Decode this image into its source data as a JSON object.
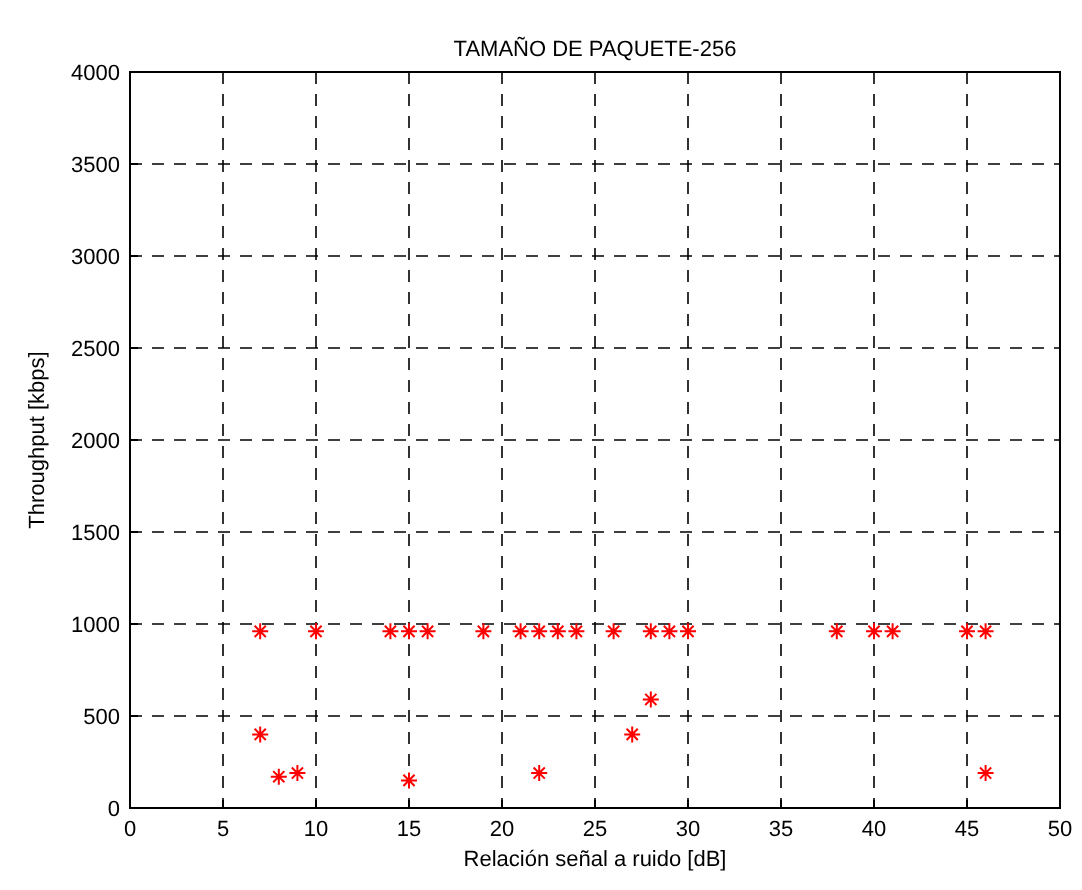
{
  "chart_data": {
    "type": "scatter",
    "title": "TAMAÑO DE PAQUETE-256",
    "xlabel": "Relación señal a ruido [dB]",
    "ylabel": "Throughput [kbps]",
    "x": [
      7,
      10,
      14,
      15,
      16,
      19,
      21,
      22,
      23,
      24,
      26,
      28,
      29,
      30,
      38,
      40,
      41,
      45,
      46,
      7,
      8,
      9,
      15,
      22,
      27,
      28,
      46
    ],
    "series": [
      {
        "color": "#ff0000",
        "values": [
          960,
          960,
          960,
          960,
          960,
          960,
          960,
          960,
          960,
          960,
          960,
          960,
          960,
          960,
          960,
          960,
          960,
          960,
          960,
          400,
          170,
          190,
          150,
          190,
          400,
          590,
          190
        ]
      }
    ],
    "xlim": [
      0,
      50
    ],
    "xticks": [
      0,
      5,
      10,
      15,
      20,
      25,
      30,
      35,
      40,
      45,
      50
    ],
    "ylim": [
      0,
      4000
    ],
    "yticks": [
      0,
      500,
      1000,
      1500,
      2000,
      2500,
      3000,
      3500,
      4000
    ],
    "grid": true,
    "marker": "cross"
  }
}
